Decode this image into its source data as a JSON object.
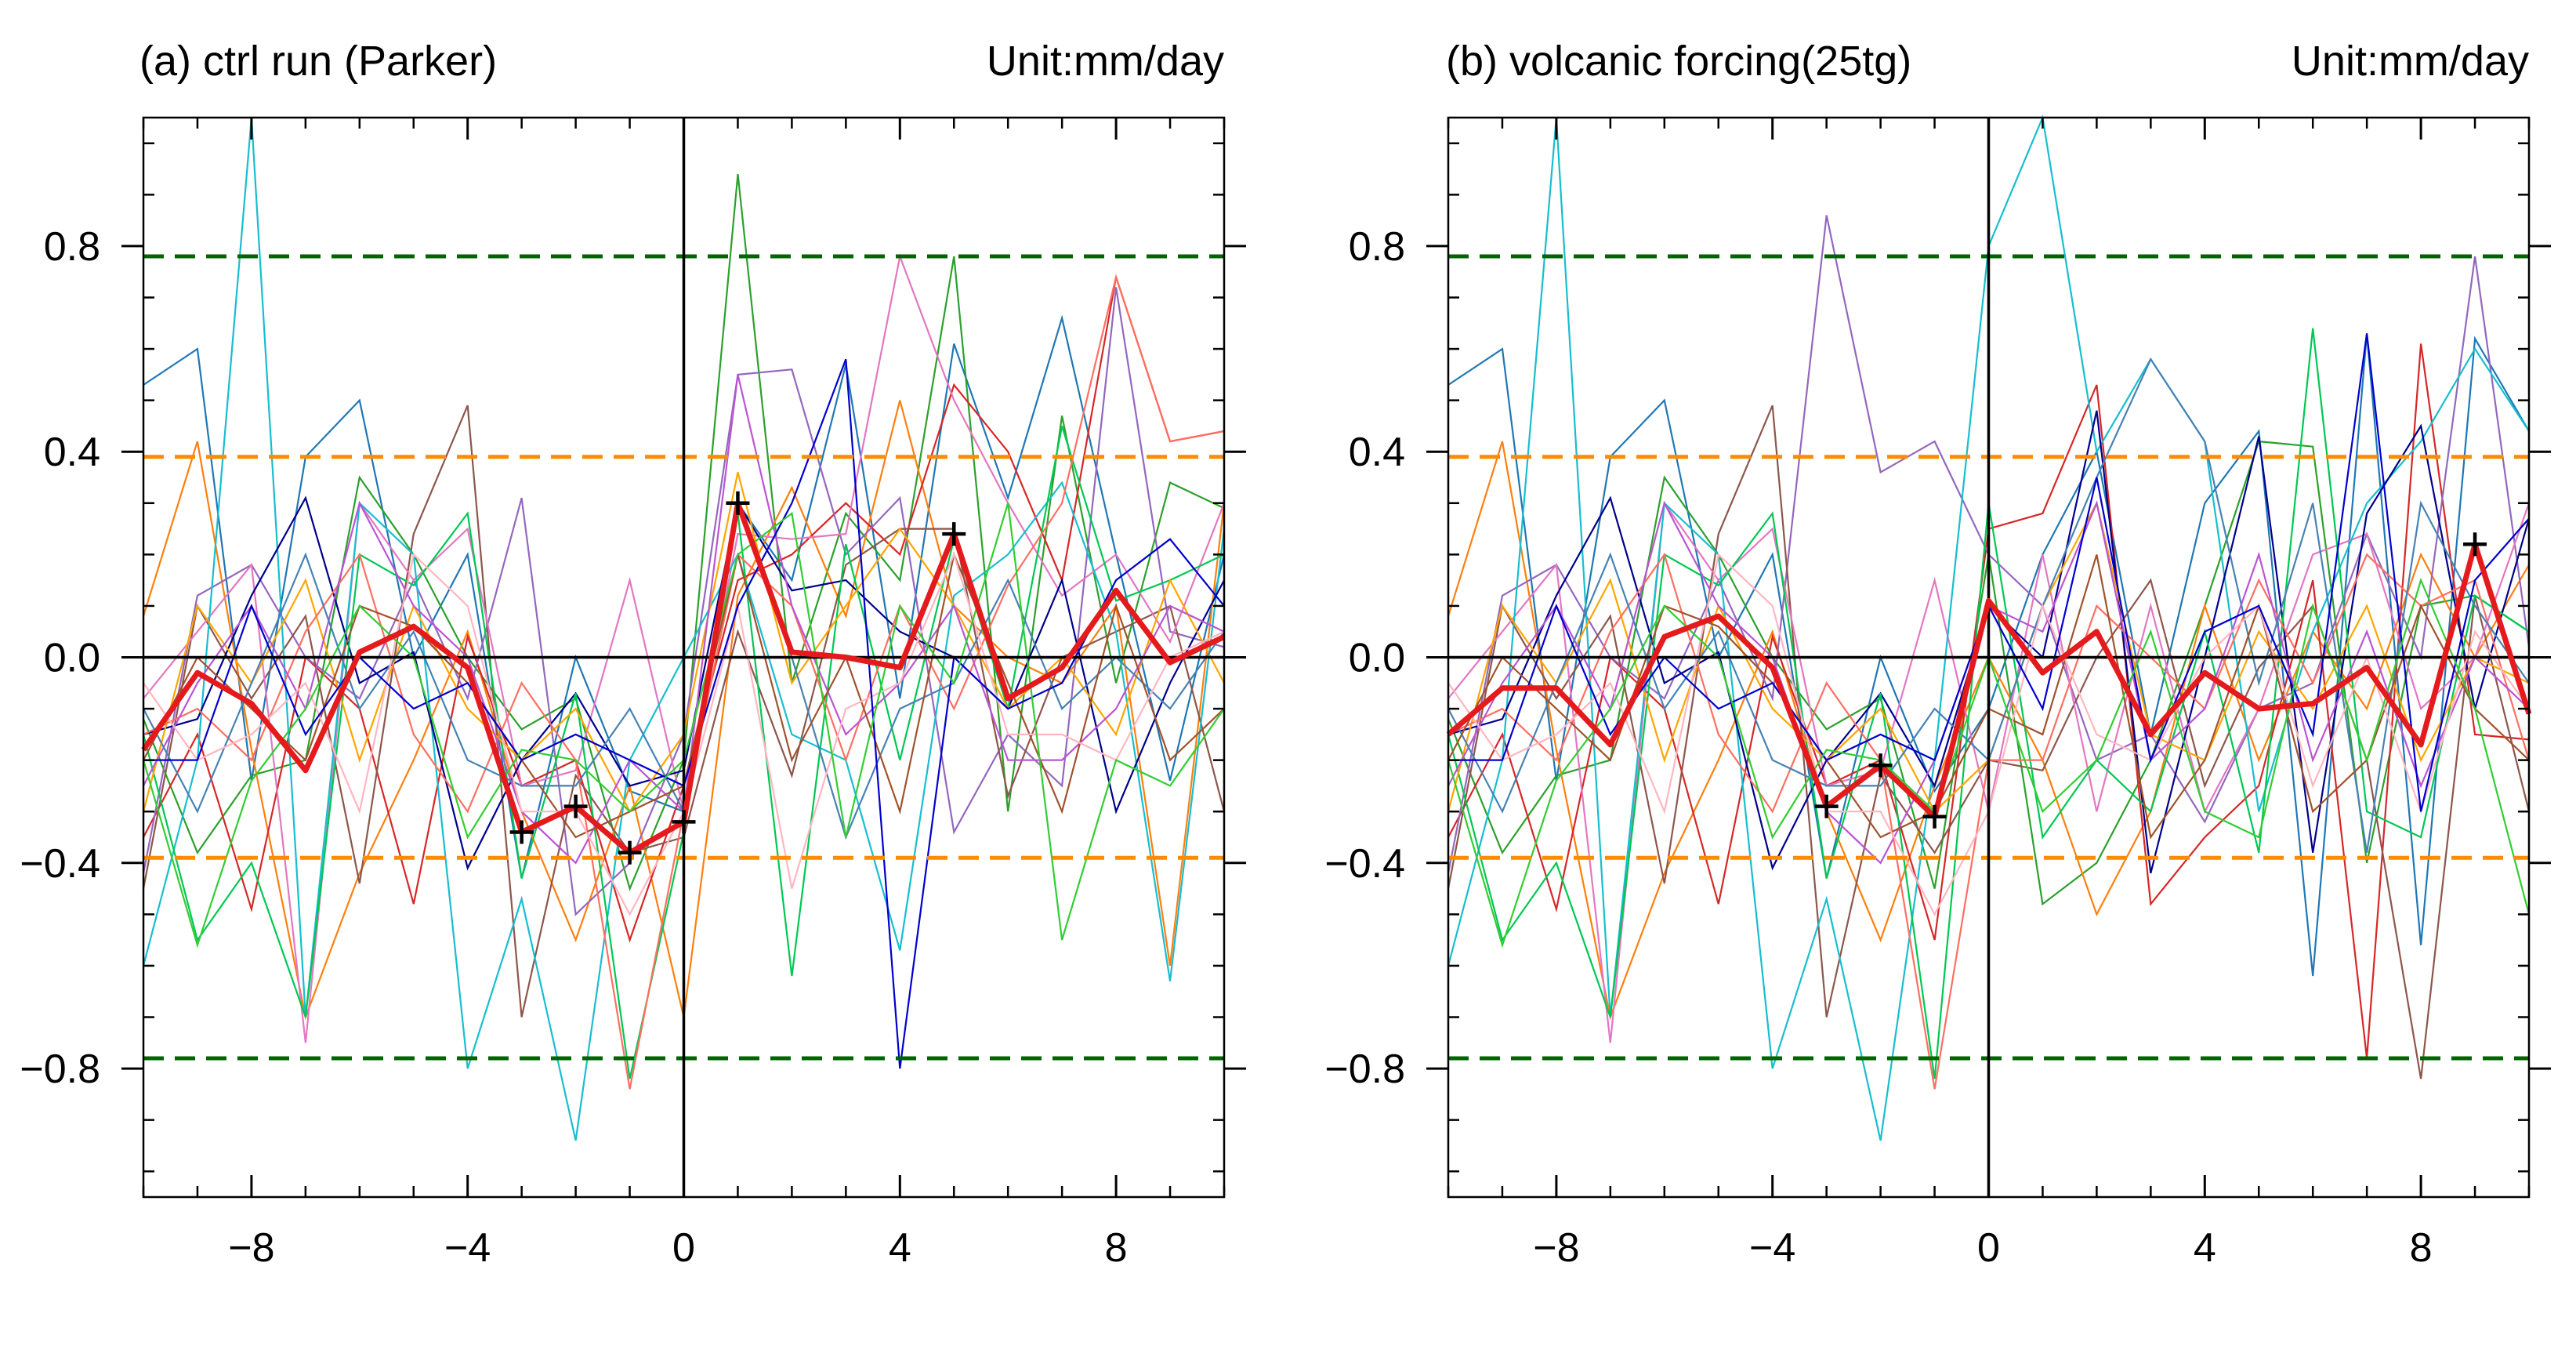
{
  "figure": {
    "panels": [
      {
        "title": "(a) ctrl run (Parker)",
        "unit": "Unit:mm/day"
      },
      {
        "title": "(b) volcanic forcing(25tg)",
        "unit": "Unit:mm/day"
      }
    ]
  },
  "colors": {
    "composite": "#e41a1c",
    "inner_threshold": "#ff8c00",
    "outer_threshold": "#006400",
    "axis": "#000000",
    "members": [
      "#1f77b4",
      "#2ca02c",
      "#ff7f0e",
      "#d62728",
      "#9467bd",
      "#8c564b",
      "#e377c2",
      "#17becf",
      "#00008b",
      "#00c853",
      "#ffa500",
      "#ff6f61",
      "#ba55d3",
      "#4682b4",
      "#a0522d",
      "#ffb6c1",
      "#0000cd",
      "#32cd32"
    ]
  },
  "chart_data": [
    {
      "type": "line",
      "title": "(a) ctrl run (Parker)",
      "unit_label": "Unit:mm/day",
      "xlim": [
        -10,
        10
      ],
      "ylim": [
        -1.05,
        1.05
      ],
      "x": [
        -10,
        -9,
        -8,
        -7,
        -6,
        -5,
        -4,
        -3,
        -2,
        -1,
        0,
        1,
        2,
        3,
        4,
        5,
        6,
        7,
        8,
        9,
        10
      ],
      "xticks": [
        -8,
        -4,
        0,
        4,
        8
      ],
      "xtick_labels": [
        "−8",
        "−4",
        "0",
        "4",
        "8"
      ],
      "yticks": [
        -0.8,
        -0.4,
        0.0,
        0.4,
        0.8
      ],
      "ytick_labels": [
        "−0.8",
        "−0.4",
        "0.0",
        "0.4",
        "0.8"
      ],
      "composite": {
        "name": "composite mean",
        "values": [
          -0.18,
          -0.03,
          -0.09,
          -0.22,
          0.01,
          0.06,
          -0.02,
          -0.34,
          -0.29,
          -0.38,
          -0.32,
          0.3,
          0.01,
          0.0,
          -0.02,
          0.24,
          -0.08,
          -0.02,
          0.13,
          -0.01,
          0.04
        ]
      },
      "significant_x": [
        -3,
        -2,
        -1,
        0,
        1,
        5
      ],
      "thresholds": [
        {
          "level": "inner",
          "values": [
            0.39,
            -0.39
          ]
        },
        {
          "level": "outer",
          "values": [
            0.78,
            -0.78
          ]
        }
      ],
      "members": [
        [
          0.53,
          0.6,
          -0.24,
          0.39,
          0.5,
          0.0,
          0.2,
          -0.43,
          0.0,
          -0.26,
          -0.3,
          0.3,
          0.15,
          0.57,
          -0.08,
          0.61,
          0.31,
          0.66,
          0.2,
          -0.24,
          0.2
        ],
        [
          -0.12,
          -0.38,
          -0.23,
          -0.2,
          0.35,
          0.2,
          0.0,
          -0.14,
          -0.08,
          -0.45,
          -0.2,
          0.94,
          -0.05,
          0.28,
          0.15,
          0.78,
          -0.3,
          0.47,
          -0.05,
          0.34,
          0.29
        ],
        [
          0.08,
          0.42,
          -0.18,
          -0.7,
          -0.42,
          -0.2,
          0.05,
          -0.3,
          -0.55,
          -0.25,
          -0.7,
          0.12,
          0.33,
          0.08,
          0.5,
          0.1,
          0.0,
          -0.05,
          0.1,
          -0.6,
          0.3
        ],
        [
          -0.35,
          -0.15,
          -0.49,
          0.0,
          -0.1,
          -0.48,
          0.04,
          -0.25,
          -0.2,
          -0.55,
          -0.25,
          0.15,
          0.2,
          0.3,
          0.2,
          0.53,
          0.4,
          0.15,
          0.74,
          0.42,
          0.44
        ],
        [
          -0.42,
          0.12,
          0.18,
          0.0,
          -0.08,
          0.15,
          -0.08,
          0.31,
          -0.5,
          -0.4,
          -0.15,
          0.55,
          0.56,
          0.2,
          0.31,
          -0.34,
          -0.15,
          -0.25,
          0.72,
          0.05,
          0.02
        ],
        [
          -0.45,
          0.1,
          -0.08,
          0.08,
          -0.44,
          0.24,
          0.49,
          -0.7,
          -0.23,
          -0.38,
          -0.35,
          0.05,
          -0.23,
          0.18,
          0.25,
          0.25,
          -0.27,
          0.0,
          0.05,
          0.1,
          -0.3
        ],
        [
          -0.08,
          0.05,
          0.18,
          -0.75,
          0.3,
          0.15,
          0.25,
          -0.25,
          -0.22,
          0.15,
          -0.3,
          0.24,
          0.23,
          0.24,
          0.78,
          0.5,
          0.3,
          0.12,
          0.2,
          0.03,
          0.3
        ],
        [
          -0.6,
          -0.2,
          1.05,
          -0.7,
          0.3,
          0.2,
          -0.8,
          -0.47,
          -0.94,
          -0.2,
          0.0,
          0.2,
          -0.15,
          -0.2,
          -0.57,
          0.12,
          0.2,
          0.34,
          0.05,
          -0.63,
          0.25
        ],
        [
          -0.15,
          -0.12,
          0.12,
          0.31,
          -0.05,
          0.01,
          -0.41,
          -0.2,
          -0.07,
          -0.25,
          -0.22,
          0.3,
          0.13,
          0.15,
          0.05,
          0.0,
          -0.1,
          0.15,
          -0.3,
          -0.05,
          0.15
        ],
        [
          -0.15,
          -0.55,
          -0.4,
          -0.7,
          0.2,
          0.14,
          0.28,
          -0.43,
          -0.07,
          -0.82,
          -0.34,
          0.28,
          -0.62,
          0.22,
          -0.2,
          0.23,
          -0.1,
          0.45,
          0.11,
          0.15,
          0.2
        ],
        [
          -0.3,
          0.1,
          -0.05,
          0.15,
          -0.2,
          0.1,
          -0.1,
          -0.2,
          -0.1,
          -0.3,
          -0.15,
          0.36,
          -0.05,
          0.1,
          0.25,
          0.1,
          -0.1,
          0.0,
          -0.15,
          0.15,
          -0.05
        ],
        [
          -0.15,
          -0.1,
          -0.2,
          0.05,
          0.2,
          -0.15,
          -0.3,
          -0.05,
          -0.2,
          -0.84,
          -0.3,
          0.2,
          0.1,
          -0.2,
          0.1,
          -0.1,
          0.14,
          0.3,
          0.74,
          0.42,
          0.44
        ],
        [
          -0.25,
          -0.05,
          0.1,
          -0.1,
          0.3,
          0.1,
          0.0,
          -0.3,
          -0.4,
          -0.2,
          -0.3,
          0.55,
          0.1,
          -0.15,
          -0.05,
          0.1,
          -0.2,
          -0.2,
          -0.1,
          0.1,
          0.05
        ],
        [
          -0.1,
          -0.3,
          -0.05,
          0.2,
          -0.1,
          0.05,
          -0.2,
          -0.25,
          -0.25,
          -0.1,
          -0.3,
          0.3,
          0.0,
          -0.35,
          -0.1,
          -0.05,
          0.15,
          -0.1,
          0.0,
          -0.1,
          0.05
        ],
        [
          -0.2,
          0.0,
          -0.1,
          -0.2,
          0.1,
          0.06,
          -0.05,
          -0.2,
          -0.35,
          -0.3,
          -0.25,
          0.2,
          -0.2,
          0.0,
          -0.3,
          0.2,
          -0.05,
          -0.3,
          0.1,
          -0.2,
          -0.1
        ],
        [
          -0.05,
          -0.2,
          -0.15,
          -0.05,
          -0.3,
          0.2,
          0.1,
          -0.3,
          -0.3,
          -0.5,
          -0.3,
          0.1,
          -0.45,
          -0.1,
          -0.05,
          0.2,
          -0.15,
          -0.15,
          -0.2,
          0.0,
          0.05
        ],
        [
          -0.2,
          -0.2,
          0.1,
          -0.15,
          0.0,
          -0.1,
          -0.05,
          -0.2,
          -0.15,
          -0.2,
          -0.25,
          0.1,
          0.3,
          0.58,
          -0.8,
          0.0,
          -0.1,
          -0.05,
          0.15,
          0.23,
          0.1
        ],
        [
          -0.2,
          -0.56,
          -0.24,
          -0.1,
          0.1,
          0.0,
          -0.35,
          -0.18,
          -0.2,
          -0.3,
          -0.2,
          0.2,
          0.28,
          -0.35,
          0.1,
          -0.05,
          0.3,
          -0.55,
          -0.2,
          -0.25,
          -0.1
        ]
      ]
    },
    {
      "type": "line",
      "title": "(b) volcanic forcing(25tg)",
      "unit_label": "Unit:mm/day",
      "xlim": [
        -10,
        10
      ],
      "ylim": [
        -1.05,
        1.05
      ],
      "x": [
        -10,
        -9,
        -8,
        -7,
        -6,
        -5,
        -4,
        -3,
        -2,
        -1,
        0,
        1,
        2,
        3,
        4,
        5,
        6,
        7,
        8,
        9,
        10
      ],
      "xticks": [
        -8,
        -4,
        0,
        4,
        8
      ],
      "xtick_labels": [
        "−8",
        "−4",
        "0",
        "4",
        "8"
      ],
      "yticks": [
        -0.8,
        -0.4,
        0.0,
        0.4,
        0.8
      ],
      "ytick_labels": [
        "−0.8",
        "−0.4",
        "0.0",
        "0.4",
        "0.8"
      ],
      "composite": {
        "name": "composite mean",
        "values": [
          -0.15,
          -0.06,
          -0.06,
          -0.17,
          0.04,
          0.08,
          -0.02,
          -0.29,
          -0.21,
          -0.31,
          0.11,
          -0.03,
          0.05,
          -0.15,
          -0.03,
          -0.1,
          -0.09,
          -0.02,
          -0.17,
          0.22,
          -0.11
        ]
      },
      "significant_x": [
        -3,
        -2,
        -1,
        9
      ],
      "thresholds": [
        {
          "level": "inner",
          "values": [
            0.39,
            -0.39
          ]
        },
        {
          "level": "outer",
          "values": [
            0.78,
            -0.78
          ]
        }
      ],
      "members": [
        [
          0.53,
          0.6,
          -0.24,
          0.39,
          0.5,
          0.0,
          0.2,
          -0.43,
          0.0,
          -0.26,
          -0.1,
          0.2,
          0.4,
          -0.15,
          0.3,
          0.44,
          -0.62,
          0.63,
          -0.56,
          0.62,
          0.44
        ],
        [
          -0.12,
          -0.38,
          -0.23,
          -0.2,
          0.35,
          0.2,
          0.0,
          -0.14,
          -0.08,
          -0.45,
          0.2,
          -0.48,
          -0.4,
          -0.2,
          0.1,
          0.42,
          0.41,
          -0.4,
          0.1,
          0.12,
          0.05
        ],
        [
          0.08,
          0.42,
          -0.18,
          -0.7,
          -0.42,
          -0.2,
          0.05,
          -0.3,
          -0.55,
          -0.25,
          0.0,
          -0.2,
          -0.5,
          -0.3,
          0.1,
          -0.2,
          0.05,
          -0.1,
          0.2,
          0.0,
          0.18
        ],
        [
          -0.35,
          -0.15,
          -0.49,
          0.0,
          -0.1,
          -0.48,
          0.04,
          -0.25,
          -0.2,
          -0.55,
          0.25,
          0.28,
          0.53,
          -0.48,
          -0.35,
          -0.25,
          0.15,
          -0.78,
          0.61,
          -0.15,
          -0.16
        ],
        [
          -0.42,
          0.12,
          0.18,
          0.0,
          -0.08,
          0.15,
          -0.08,
          0.86,
          0.36,
          0.42,
          0.2,
          0.1,
          -0.2,
          -0.15,
          -0.32,
          -0.1,
          -0.05,
          0.24,
          0.0,
          0.78,
          0.02
        ],
        [
          -0.45,
          0.1,
          -0.08,
          0.08,
          -0.44,
          0.24,
          0.49,
          -0.7,
          -0.23,
          -0.38,
          -0.2,
          -0.22,
          0.0,
          0.15,
          -0.25,
          -0.02,
          0.1,
          -0.2,
          -0.82,
          0.12,
          -0.3
        ],
        [
          -0.08,
          0.05,
          0.18,
          -0.75,
          0.3,
          0.15,
          0.25,
          -0.25,
          -0.22,
          0.15,
          -0.3,
          0.2,
          -0.3,
          0.1,
          -0.3,
          -0.1,
          0.2,
          0.24,
          -0.1,
          0.0,
          0.3
        ],
        [
          -0.6,
          -0.2,
          1.05,
          -0.7,
          0.3,
          0.2,
          -0.8,
          -0.47,
          -0.94,
          -0.2,
          0.8,
          1.05,
          0.4,
          0.58,
          0.42,
          -0.3,
          0.05,
          0.3,
          0.42,
          0.6,
          0.44
        ],
        [
          -0.15,
          -0.12,
          0.12,
          0.31,
          -0.05,
          0.01,
          -0.41,
          -0.2,
          -0.07,
          -0.25,
          0.1,
          0.0,
          0.48,
          -0.42,
          0.0,
          0.43,
          -0.38,
          0.28,
          0.45,
          -0.1,
          0.27
        ],
        [
          -0.15,
          -0.55,
          -0.4,
          -0.7,
          0.2,
          0.14,
          0.28,
          -0.43,
          -0.07,
          -0.82,
          0.3,
          -0.35,
          -0.2,
          -0.3,
          0.05,
          -0.38,
          0.64,
          -0.3,
          -0.35,
          0.12,
          0.05
        ],
        [
          -0.3,
          0.1,
          -0.05,
          0.15,
          -0.2,
          0.1,
          -0.1,
          -0.2,
          -0.1,
          -0.3,
          -0.2,
          0.1,
          0.3,
          -0.15,
          -0.2,
          0.05,
          -0.1,
          0.1,
          -0.2,
          0.0,
          -0.05
        ],
        [
          -0.15,
          -0.1,
          -0.2,
          0.05,
          0.2,
          -0.15,
          -0.3,
          -0.05,
          -0.2,
          -0.84,
          -0.2,
          -0.2,
          0.1,
          0.0,
          -0.1,
          0.15,
          -0.05,
          0.2,
          0.1,
          0.15,
          -0.2
        ],
        [
          -0.25,
          -0.05,
          0.1,
          -0.1,
          0.3,
          0.1,
          0.0,
          -0.3,
          -0.4,
          -0.2,
          0.1,
          0.05,
          0.3,
          -0.2,
          -0.1,
          0.2,
          -0.2,
          0.05,
          -0.25,
          0.0,
          -0.1
        ],
        [
          -0.1,
          -0.3,
          -0.05,
          0.2,
          -0.1,
          0.05,
          -0.2,
          -0.25,
          -0.25,
          -0.1,
          -0.2,
          0.1,
          0.35,
          0.58,
          0.42,
          -0.05,
          0.3,
          -0.38,
          0.3,
          0.1,
          -0.05
        ],
        [
          -0.2,
          0.0,
          -0.1,
          -0.2,
          0.1,
          0.06,
          -0.05,
          -0.2,
          -0.35,
          -0.3,
          -0.1,
          -0.15,
          0.2,
          -0.35,
          -0.2,
          0.1,
          -0.3,
          -0.2,
          0.1,
          -0.1,
          -0.2
        ],
        [
          -0.05,
          -0.2,
          -0.15,
          -0.05,
          -0.3,
          0.2,
          0.1,
          -0.3,
          -0.3,
          -0.5,
          -0.3,
          0.1,
          -0.15,
          -0.2,
          0.0,
          0.1,
          -0.25,
          0.0,
          -0.3,
          0.05,
          -0.1
        ],
        [
          -0.2,
          -0.2,
          0.1,
          -0.15,
          0.0,
          -0.1,
          -0.05,
          -0.2,
          -0.15,
          -0.2,
          0.1,
          -0.1,
          0.35,
          -0.2,
          0.05,
          0.1,
          -0.15,
          0.63,
          -0.3,
          0.15,
          0.27
        ],
        [
          -0.2,
          -0.56,
          -0.24,
          -0.1,
          0.1,
          0.0,
          -0.35,
          -0.18,
          -0.2,
          -0.3,
          0.0,
          -0.3,
          -0.2,
          0.05,
          -0.3,
          -0.35,
          0.1,
          -0.2,
          0.15,
          -0.1,
          -0.5
        ]
      ]
    }
  ]
}
